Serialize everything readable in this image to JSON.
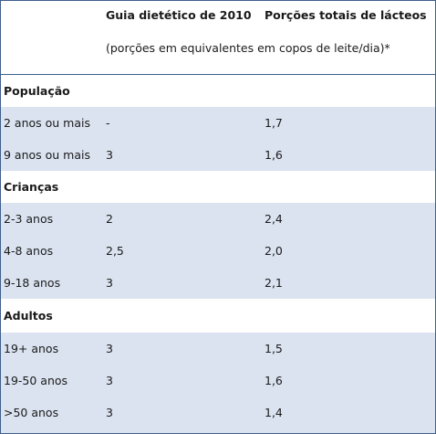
{
  "header": {
    "col1": "Guia dietético de 2010",
    "col2": "Porções totais de lácteos",
    "note": "(porções em equivalentes em copos de leite/dia)*"
  },
  "sections": [
    {
      "title": "População",
      "rows": [
        {
          "group": "2 anos ou mais",
          "guide": "-",
          "total": "1,7"
        },
        {
          "group": "9 anos ou mais",
          "guide": "3",
          "total": "1,6"
        }
      ]
    },
    {
      "title": "Crianças",
      "rows": [
        {
          "group": "2-3 anos",
          "guide": "2",
          "total": "2,4"
        },
        {
          "group": "4-8 anos",
          "guide": "2,5",
          "total": "2,0"
        },
        {
          "group": "9-18 anos",
          "guide": "3",
          "total": "2,1"
        }
      ]
    },
    {
      "title": "Adultos",
      "rows": [
        {
          "group": "19+ anos",
          "guide": "3",
          "total": "1,5"
        },
        {
          "group": "19-50 anos",
          "guide": "3",
          "total": "1,6"
        },
        {
          "group": ">50 anos",
          "guide": "3",
          "total": "1,4"
        }
      ]
    }
  ]
}
